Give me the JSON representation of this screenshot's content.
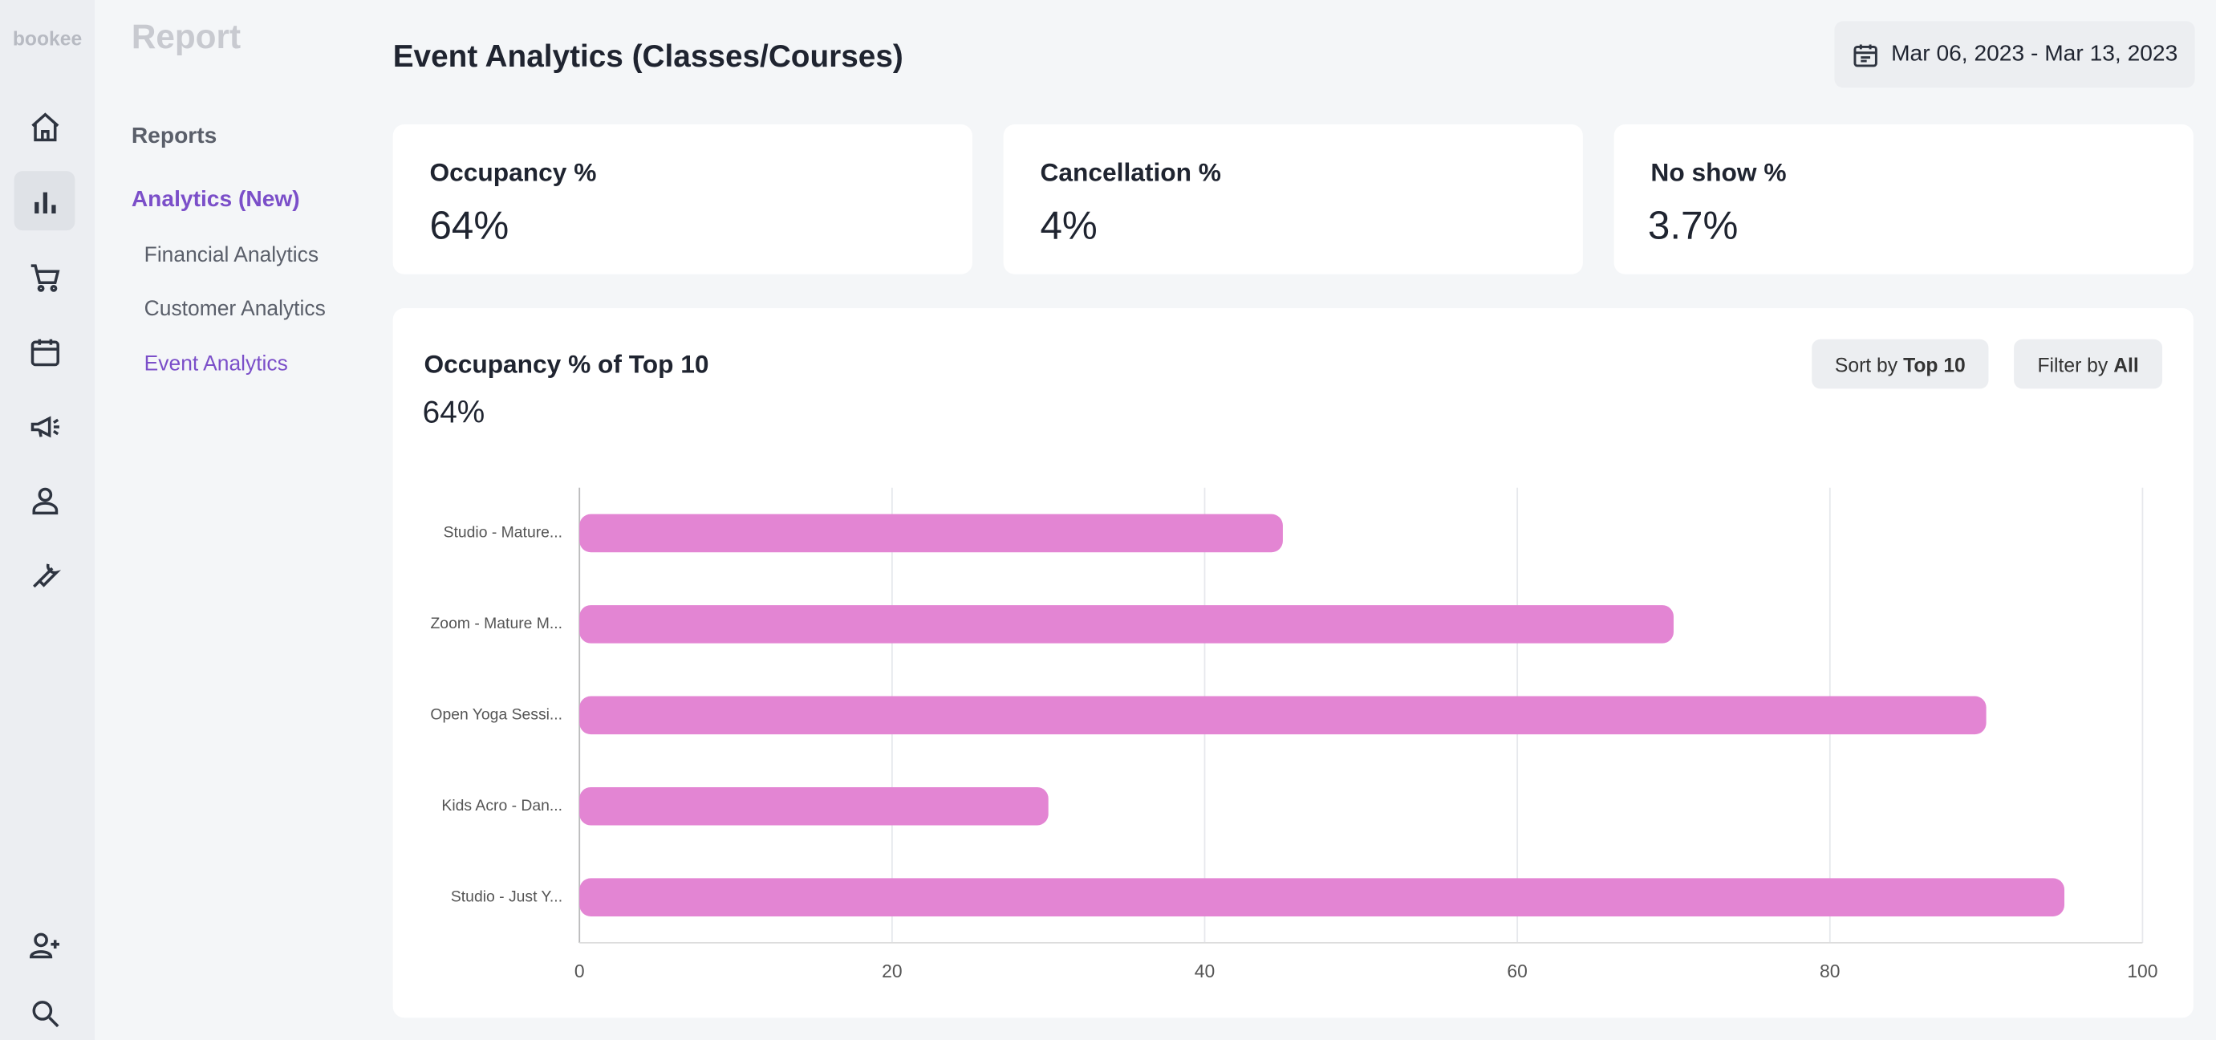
{
  "logo": "bookee",
  "nav": {
    "title": "Report",
    "section": "Reports",
    "group": "Analytics (New)",
    "items": [
      "Financial Analytics",
      "Customer Analytics",
      "Event Analytics"
    ]
  },
  "header": {
    "title": "Event Analytics (Classes/Courses)",
    "date_range": "Mar 06, 2023 - Mar 13, 2023"
  },
  "kpis": [
    {
      "label": "Occupancy %",
      "value": "64%"
    },
    {
      "label": "Cancellation %",
      "value": "4%"
    },
    {
      "label": "No show %",
      "value": "3.7%"
    }
  ],
  "controls": {
    "sort_label": "Sort by",
    "sort_value": "Top 10",
    "filter_label": "Filter by",
    "filter_value": "All"
  },
  "chart_data": {
    "type": "hbar",
    "title": "Occupancy % of Top 10",
    "subtitle": "64%",
    "categories": [
      "Studio - Mature...",
      "Zoom - Mature M...",
      "Open Yoga Sessi...",
      "Kids Acro - Dan...",
      "Studio - Just Y..."
    ],
    "values": [
      45,
      70,
      90,
      30,
      95
    ],
    "color": "#e385d3",
    "xlim": [
      0,
      100
    ],
    "xticks": [
      0,
      20,
      40,
      60,
      80,
      100
    ],
    "grid": true
  }
}
